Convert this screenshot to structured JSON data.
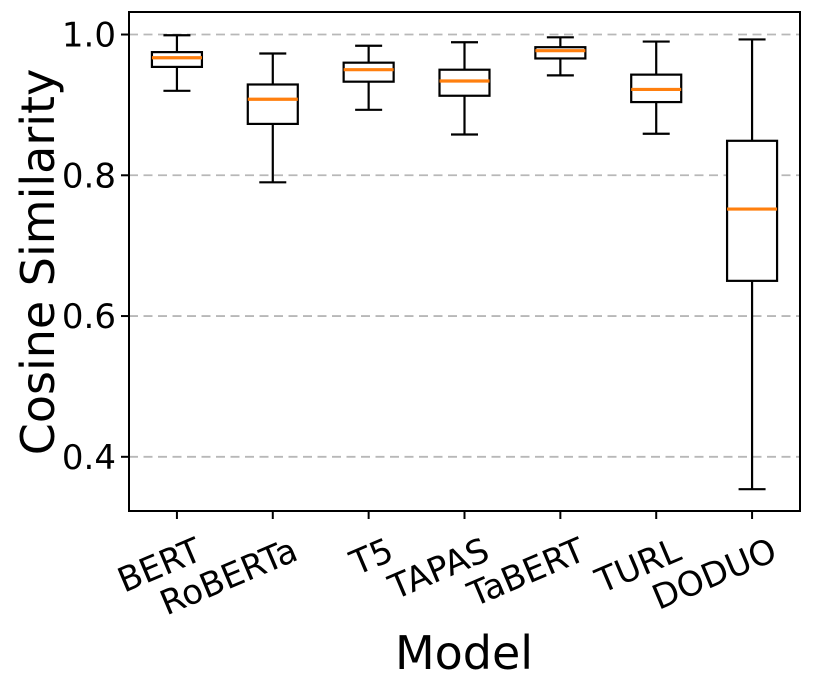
{
  "chart_data": {
    "type": "box",
    "title": "",
    "xlabel": "Model",
    "ylabel": "Cosine Similarity",
    "categories": [
      "BERT",
      "RoBERTa",
      "T5",
      "TAPAS",
      "TaBERT",
      "TURL",
      "DODUO"
    ],
    "series": [
      {
        "name": "BERT",
        "whisker_low": 0.92,
        "q1": 0.954,
        "median": 0.967,
        "q3": 0.975,
        "whisker_high": 0.999
      },
      {
        "name": "RoBERTa",
        "whisker_low": 0.79,
        "q1": 0.873,
        "median": 0.908,
        "q3": 0.929,
        "whisker_high": 0.973
      },
      {
        "name": "T5",
        "whisker_low": 0.893,
        "q1": 0.933,
        "median": 0.95,
        "q3": 0.96,
        "whisker_high": 0.984
      },
      {
        "name": "TAPAS",
        "whisker_low": 0.858,
        "q1": 0.913,
        "median": 0.934,
        "q3": 0.95,
        "whisker_high": 0.989
      },
      {
        "name": "TaBERT",
        "whisker_low": 0.942,
        "q1": 0.966,
        "median": 0.977,
        "q3": 0.982,
        "whisker_high": 0.996
      },
      {
        "name": "TURL",
        "whisker_low": 0.859,
        "q1": 0.904,
        "median": 0.922,
        "q3": 0.943,
        "whisker_high": 0.99
      },
      {
        "name": "DODUO",
        "whisker_low": 0.354,
        "q1": 0.65,
        "median": 0.752,
        "q3": 0.849,
        "whisker_high": 0.993
      }
    ],
    "ylim": [
      0.323,
      1.032
    ],
    "yticks": [
      1.0,
      0.8,
      0.6,
      0.4
    ],
    "ytick_labels": [
      "1.0",
      "0.8",
      "0.6",
      "0.4"
    ],
    "xtick_rotation_deg": 23,
    "grid": {
      "axis": "y",
      "style": "dashed",
      "on": true
    },
    "legend": "none",
    "colors": {
      "median": "#ff7f0e",
      "box_edge": "#000000",
      "box_fill": "#ffffff",
      "grid": "#b8b8b8",
      "spine": "#000000",
      "text": "#000000",
      "background": "#ffffff"
    }
  }
}
